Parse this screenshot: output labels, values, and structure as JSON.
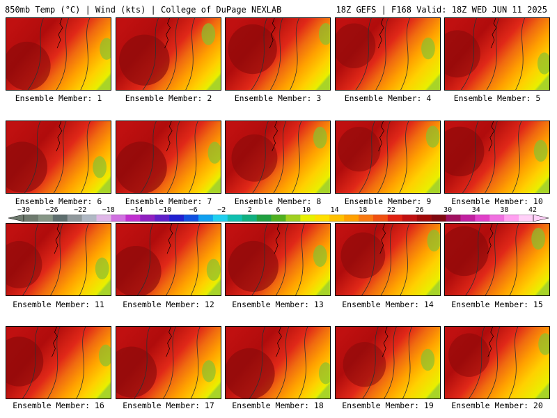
{
  "header": {
    "left": "850mb Temp (°C) | Wind (kts) | College of DuPage NEXLAB",
    "right": "18Z GEFS | F168 Valid: 18Z WED JUN 11 2025"
  },
  "members": [
    {
      "caption": "Ensemble Member: 1",
      "warmth": 0.75
    },
    {
      "caption": "Ensemble Member: 2",
      "warmth": 0.85
    },
    {
      "caption": "Ensemble Member: 3",
      "warmth": 0.8
    },
    {
      "caption": "Ensemble Member: 4",
      "warmth": 0.6
    },
    {
      "caption": "Ensemble Member: 5",
      "warmth": 0.7
    },
    {
      "caption": "Ensemble Member: 6",
      "warmth": 0.85
    },
    {
      "caption": "Ensemble Member: 7",
      "warmth": 0.9
    },
    {
      "caption": "Ensemble Member: 8",
      "warmth": 0.7
    },
    {
      "caption": "Ensemble Member: 9",
      "warmth": 0.6
    },
    {
      "caption": "Ensemble Member: 10",
      "warmth": 0.8
    },
    {
      "caption": "Ensemble Member: 11",
      "warmth": 0.7
    },
    {
      "caption": "Ensemble Member: 12",
      "warmth": 0.85
    },
    {
      "caption": "Ensemble Member: 13",
      "warmth": 0.85
    },
    {
      "caption": "Ensemble Member: 14",
      "warmth": 0.65
    },
    {
      "caption": "Ensemble Member: 15",
      "warmth": 0.8
    },
    {
      "caption": "Ensemble Member: 16",
      "warmth": 0.8
    },
    {
      "caption": "Ensemble Member: 17",
      "warmth": 0.85
    },
    {
      "caption": "Ensemble Member: 18",
      "warmth": 0.85
    },
    {
      "caption": "Ensemble Member: 19",
      "warmth": 0.6
    },
    {
      "caption": "Ensemble Member: 20",
      "warmth": 0.55
    }
  ],
  "colorbar": {
    "labels": [
      "−30",
      "−26",
      "−22",
      "−18",
      "−14",
      "−10",
      "−6",
      "−2",
      "2",
      "6",
      "10",
      "14",
      "18",
      "22",
      "26",
      "30",
      "34",
      "38",
      "42"
    ],
    "colors": [
      "#6e7a6e",
      "#869686",
      "#5e6e6e",
      "#90989c",
      "#b0b8c4",
      "#e0b8e8",
      "#d070e0",
      "#c030d0",
      "#9020c0",
      "#6020c8",
      "#2020d0",
      "#1050e0",
      "#10a0f0",
      "#20d0f0",
      "#10c0b0",
      "#10b080",
      "#20a040",
      "#50b020",
      "#a0d020",
      "#e8f000",
      "#ffe000",
      "#ffc000",
      "#ffa000",
      "#f87810",
      "#f05010",
      "#e02010",
      "#c01010",
      "#a00808",
      "#800810",
      "#a01060",
      "#c020a0",
      "#e040c8",
      "#f070e0",
      "#ffa0f0",
      "#ffd0f8"
    ]
  }
}
